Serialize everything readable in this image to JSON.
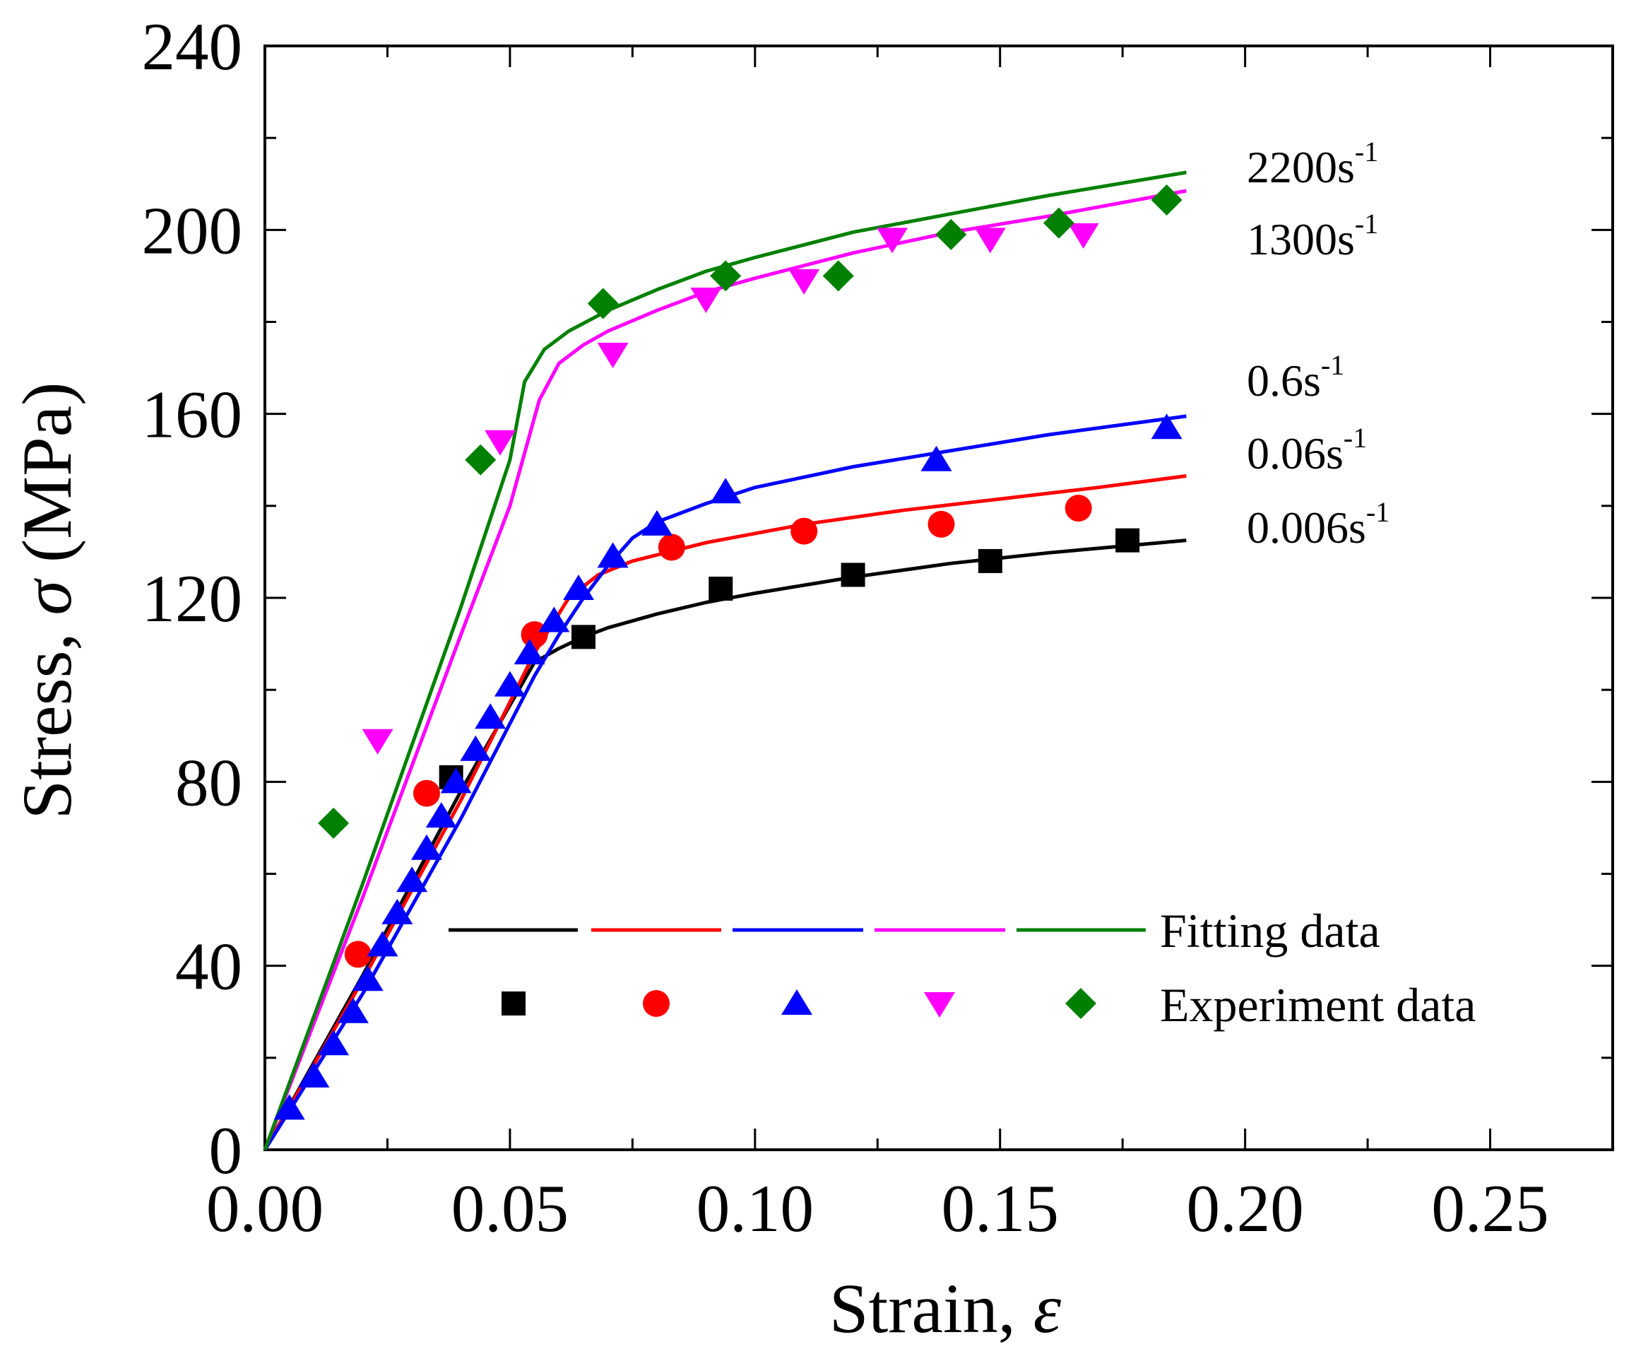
{
  "chart_data": {
    "type": "scatter",
    "xlabel": "Strain, ε",
    "xlabel_prefix": "Strain, ",
    "xlabel_symbol": "ε",
    "ylabel": "Stress, σ (MPa)",
    "ylabel_prefix": "Stress, ",
    "ylabel_symbol": "σ",
    "ylabel_suffix": " (MPa)",
    "xlim": [
      0,
      0.275
    ],
    "ylim": [
      0,
      240
    ],
    "xticks": [
      "0.00",
      "0.05",
      "0.10",
      "0.15",
      "0.20",
      "0.25"
    ],
    "yticks": [
      "0",
      "40",
      "80",
      "120",
      "160",
      "200",
      "240"
    ],
    "grid": false,
    "legend": {
      "placement": "lower-center",
      "fitting_label": "Fitting data",
      "experiment_label": "Experiment data"
    },
    "series": [
      {
        "name": "0.006s-1",
        "label_main": "0.006s",
        "label_exp": "-1",
        "color": "#000000",
        "marker": "square",
        "fit": [
          [
            0,
            0
          ],
          [
            0.02,
            38
          ],
          [
            0.04,
            78
          ],
          [
            0.055,
            106
          ],
          [
            0.06,
            109
          ],
          [
            0.065,
            111.5
          ],
          [
            0.07,
            113.5
          ],
          [
            0.08,
            116.5
          ],
          [
            0.09,
            119
          ],
          [
            0.1,
            121
          ],
          [
            0.12,
            124.5
          ],
          [
            0.14,
            127.5
          ],
          [
            0.16,
            129.8
          ],
          [
            0.188,
            132.5
          ]
        ],
        "experiment": [
          [
            0.038,
            81
          ],
          [
            0.065,
            111.5
          ],
          [
            0.093,
            122
          ],
          [
            0.12,
            125
          ],
          [
            0.148,
            128
          ],
          [
            0.176,
            132.5
          ]
        ]
      },
      {
        "name": "0.06s-1",
        "label_main": "0.06s",
        "label_exp": "-1",
        "color": "#ff0000",
        "marker": "circle",
        "fit": [
          [
            0,
            0
          ],
          [
            0.02,
            37
          ],
          [
            0.04,
            76
          ],
          [
            0.055,
            108
          ],
          [
            0.062,
            120
          ],
          [
            0.068,
            125
          ],
          [
            0.075,
            128
          ],
          [
            0.09,
            132
          ],
          [
            0.11,
            136
          ],
          [
            0.13,
            139
          ],
          [
            0.15,
            141.5
          ],
          [
            0.17,
            144
          ],
          [
            0.188,
            146.5
          ]
        ],
        "experiment": [
          [
            0.019,
            42.5
          ],
          [
            0.033,
            77.5
          ],
          [
            0.055,
            112
          ],
          [
            0.083,
            131
          ],
          [
            0.11,
            134.5
          ],
          [
            0.138,
            136
          ],
          [
            0.166,
            139.5
          ]
        ]
      },
      {
        "name": "0.6s-1",
        "label_main": "0.6s",
        "label_exp": "-1",
        "color": "#0000ff",
        "marker": "triangle-up",
        "fit": [
          [
            0,
            0
          ],
          [
            0.02,
            34
          ],
          [
            0.04,
            72
          ],
          [
            0.055,
            103
          ],
          [
            0.06,
            112
          ],
          [
            0.065,
            120
          ],
          [
            0.07,
            127
          ],
          [
            0.075,
            133
          ],
          [
            0.08,
            136.5
          ],
          [
            0.09,
            140.5
          ],
          [
            0.1,
            144
          ],
          [
            0.12,
            148.5
          ],
          [
            0.14,
            152
          ],
          [
            0.16,
            155.5
          ],
          [
            0.188,
            159.5
          ]
        ],
        "experiment": [
          [
            0.005,
            9
          ],
          [
            0.01,
            16
          ],
          [
            0.014,
            23
          ],
          [
            0.018,
            30
          ],
          [
            0.021,
            37
          ],
          [
            0.024,
            44.5
          ],
          [
            0.027,
            51.5
          ],
          [
            0.03,
            58.5
          ],
          [
            0.033,
            65.5
          ],
          [
            0.036,
            72.5
          ],
          [
            0.039,
            80
          ],
          [
            0.043,
            87
          ],
          [
            0.046,
            94
          ],
          [
            0.05,
            101
          ],
          [
            0.054,
            108
          ],
          [
            0.059,
            115
          ],
          [
            0.064,
            122
          ],
          [
            0.071,
            129
          ],
          [
            0.08,
            136
          ],
          [
            0.094,
            143
          ],
          [
            0.137,
            150
          ],
          [
            0.184,
            157
          ]
        ]
      },
      {
        "name": "1300s-1",
        "label_main": "1300s",
        "label_exp": "-1",
        "color": "#ff00ff",
        "marker": "triangle-down",
        "fit": [
          [
            0,
            0
          ],
          [
            0.02,
            55
          ],
          [
            0.04,
            112
          ],
          [
            0.05,
            140
          ],
          [
            0.056,
            163
          ],
          [
            0.06,
            171
          ],
          [
            0.065,
            175
          ],
          [
            0.07,
            178
          ],
          [
            0.08,
            182.5
          ],
          [
            0.09,
            186.5
          ],
          [
            0.1,
            189.5
          ],
          [
            0.12,
            195
          ],
          [
            0.14,
            199.5
          ],
          [
            0.16,
            203
          ],
          [
            0.188,
            208.5
          ]
        ],
        "experiment": [
          [
            0.023,
            89
          ],
          [
            0.048,
            154
          ],
          [
            0.071,
            173
          ],
          [
            0.09,
            185
          ],
          [
            0.11,
            189
          ],
          [
            0.128,
            198
          ],
          [
            0.148,
            198
          ],
          [
            0.167,
            199
          ]
        ]
      },
      {
        "name": "2200s-1",
        "label_main": "2200s",
        "label_exp": "-1",
        "color": "#008000",
        "marker": "diamond",
        "fit": [
          [
            0,
            0
          ],
          [
            0.02,
            58
          ],
          [
            0.04,
            118
          ],
          [
            0.05,
            150
          ],
          [
            0.053,
            167
          ],
          [
            0.057,
            174
          ],
          [
            0.062,
            178
          ],
          [
            0.07,
            182.5
          ],
          [
            0.08,
            187
          ],
          [
            0.09,
            191
          ],
          [
            0.1,
            194
          ],
          [
            0.12,
            199.5
          ],
          [
            0.14,
            203.5
          ],
          [
            0.16,
            207.5
          ],
          [
            0.188,
            212.5
          ]
        ],
        "experiment": [
          [
            0.014,
            71
          ],
          [
            0.044,
            150
          ],
          [
            0.069,
            184
          ],
          [
            0.094,
            190
          ],
          [
            0.117,
            190
          ],
          [
            0.14,
            199
          ],
          [
            0.162,
            201.5
          ],
          [
            0.184,
            206.5
          ]
        ]
      }
    ]
  }
}
